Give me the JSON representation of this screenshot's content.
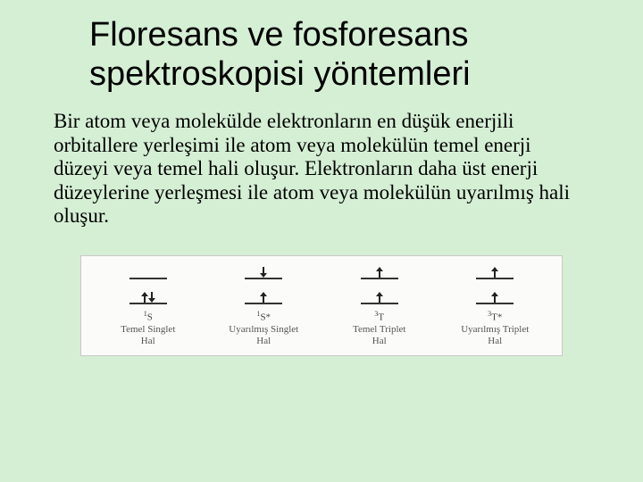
{
  "title_line1": "Floresans ve fosforesans",
  "title_line2": "spektroskopisi yöntemleri",
  "paragraph": "Bir atom veya molekülde elektronların en düşük enerjili orbitallere yerleşimi ile atom veya molekülün temel enerji düzeyi veya temel hali oluşur. Elektronların daha üst enerji düzeylerine yerleşmesi ile atom veya molekülün uyarılmış hali oluşur.",
  "colors": {
    "background": "#d5efd5",
    "diagram_bg": "#fbfbf9",
    "diagram_border": "#c8c8c8",
    "line": "#333333",
    "label": "#555555"
  },
  "states": [
    {
      "upper_arrows": [],
      "lower_arrows": [
        "up",
        "down"
      ],
      "notation_html": "<sup>1</sup>S",
      "label_line1": "Temel Singlet",
      "label_line2": "Hal"
    },
    {
      "upper_arrows": [
        "down"
      ],
      "lower_arrows": [
        "up"
      ],
      "notation_html": "<sup>1</sup>S*",
      "label_line1": "Uyarılmış Singlet",
      "label_line2": "Hal"
    },
    {
      "upper_arrows": [
        "up"
      ],
      "lower_arrows": [
        "up"
      ],
      "notation_html": "<sup>3</sup>T",
      "label_line1": "Temel Triplet",
      "label_line2": "Hal"
    },
    {
      "upper_arrows": [
        "up"
      ],
      "lower_arrows": [
        "up"
      ],
      "notation_html": "<sup>3</sup>T*",
      "label_line1": "Uyarılmış Triplet",
      "label_line2": "Hal"
    }
  ]
}
